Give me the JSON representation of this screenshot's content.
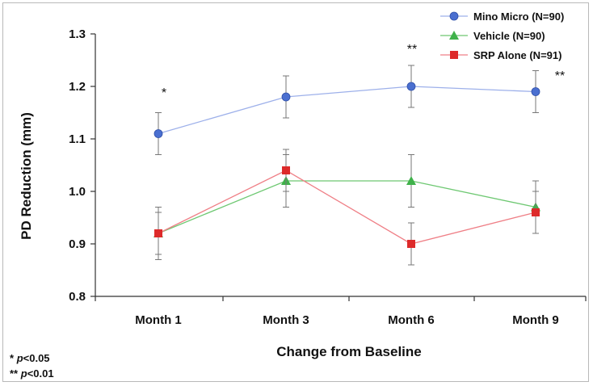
{
  "chart_data": {
    "type": "line",
    "title": "",
    "xlabel": "Change from Baseline",
    "ylabel": "PD Reduction (mm)",
    "categories": [
      "Month 1",
      "Month 3",
      "Month 6",
      "Month 9"
    ],
    "ylim": [
      0.8,
      1.3
    ],
    "yticks": [
      "0.8",
      "0.9",
      "1.0",
      "1.1",
      "1.2",
      "1.3"
    ],
    "grid": false,
    "legend_position": "top-right",
    "series": [
      {
        "name": "Mino Micro (N=90)",
        "color": "#4a6fd0",
        "line_color": "#9db0ea",
        "marker": "circle",
        "values": [
          1.11,
          1.18,
          1.2,
          1.19
        ],
        "error": [
          0.04,
          0.04,
          0.04,
          0.04
        ]
      },
      {
        "name": "Vehicle (N=90)",
        "color": "#3fb14a",
        "line_color": "#6ec872",
        "marker": "triangle",
        "values": [
          0.92,
          1.02,
          1.02,
          0.97
        ],
        "error": [
          0.04,
          0.05,
          0.05,
          0.05
        ]
      },
      {
        "name": "SRP Alone (N=91)",
        "color": "#dd2a2a",
        "line_color": "#ef7f86",
        "marker": "square",
        "values": [
          0.92,
          1.04,
          0.9,
          0.96
        ],
        "error": [
          0.05,
          0.04,
          0.04,
          0.04
        ]
      }
    ],
    "annotations": [
      {
        "category": "Month 1",
        "text": "*"
      },
      {
        "category": "Month 6",
        "text": "**"
      },
      {
        "category": "Month 9",
        "text": "**"
      }
    ]
  },
  "footnotes": [
    {
      "stars": "*",
      "p": "p",
      "threshold": "<0.05"
    },
    {
      "stars": "**",
      "p": "p",
      "threshold": "<0.01"
    }
  ]
}
